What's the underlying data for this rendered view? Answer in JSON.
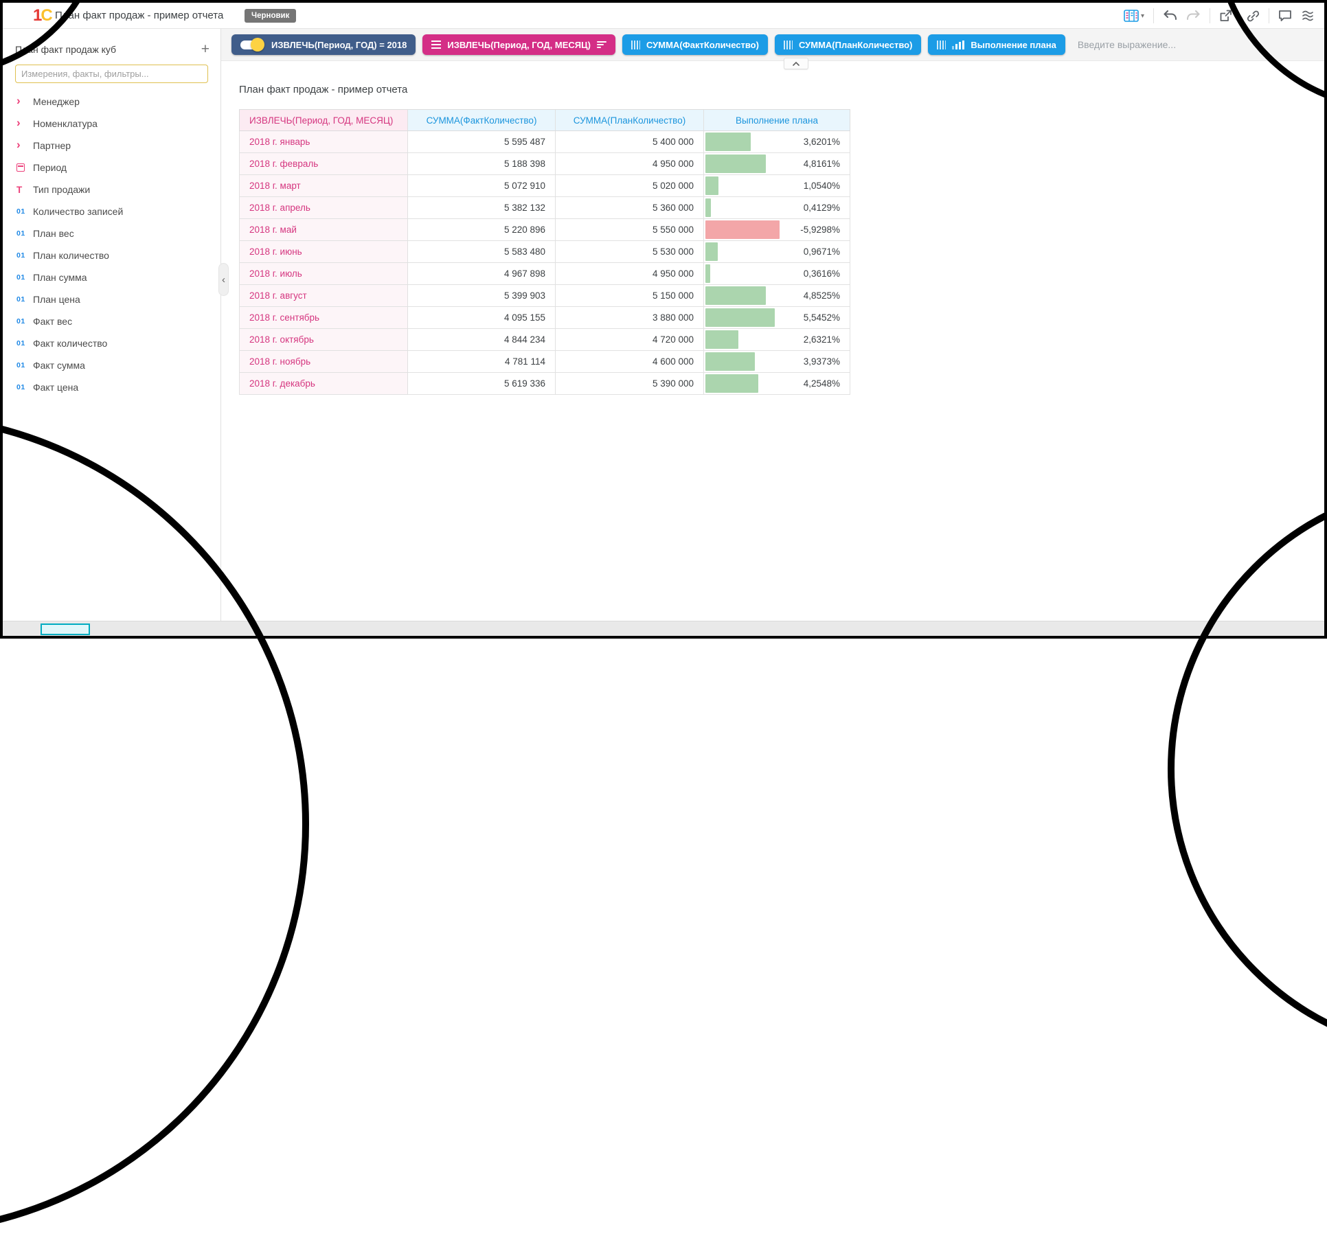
{
  "topbar": {
    "logo_text": "1С",
    "title": "План факт продаж - пример отчета",
    "badge": "Черновик",
    "icons": [
      "view-table",
      "caret-down",
      "undo",
      "redo",
      "export",
      "caret-down",
      "link",
      "comment",
      "waves"
    ]
  },
  "toolbar": {
    "chips": [
      {
        "label": "ИЗВЛЕЧЬ(Период, ГОД) = 2018",
        "type": "filter-toggle-on",
        "color": "#405d8a"
      },
      {
        "label": "ИЗВЛЕЧЬ(Период, ГОД, МЕСЯЦ)",
        "type": "dimension",
        "color": "#d42e86"
      },
      {
        "label": "СУММА(ФактКоличество)",
        "type": "measure",
        "color": "#1c9ce6"
      },
      {
        "label": "СУММА(ПланКоличество)",
        "type": "measure",
        "color": "#1c9ce6"
      },
      {
        "label": "Выполнение плана",
        "type": "measure-chart",
        "color": "#1c9ce6"
      }
    ],
    "expression_placeholder": "Введите выражение..."
  },
  "sidebar": {
    "cube_title": "План факт продаж куб",
    "add_button": "+",
    "search_placeholder": "Измерения, факты, фильтры...",
    "items": [
      {
        "icon": "chevron",
        "label": "Менеджер"
      },
      {
        "icon": "chevron",
        "label": "Номенклатура"
      },
      {
        "icon": "chevron",
        "label": "Партнер"
      },
      {
        "icon": "calendar",
        "label": "Период"
      },
      {
        "icon": "text",
        "label": "Тип продажи"
      },
      {
        "icon": "number",
        "label": "Количество записей"
      },
      {
        "icon": "number",
        "label": "План вес"
      },
      {
        "icon": "number",
        "label": "План количество"
      },
      {
        "icon": "number",
        "label": "План сумма"
      },
      {
        "icon": "number",
        "label": "План цена"
      },
      {
        "icon": "number",
        "label": "Факт вес"
      },
      {
        "icon": "number",
        "label": "Факт количество"
      },
      {
        "icon": "number",
        "label": "Факт сумма"
      },
      {
        "icon": "number",
        "label": "Факт цена"
      }
    ]
  },
  "main": {
    "report_title": "План факт продаж - пример отчета",
    "table": {
      "columns": [
        "ИЗВЛЕЧЬ(Период, ГОД, МЕСЯЦ)",
        "СУММА(ФактКоличество)",
        "СУММА(ПланКоличество)",
        "Выполнение плана"
      ],
      "rows": [
        {
          "month": "2018 г. январь",
          "fact": "5 595 487",
          "plan": "5 400 000",
          "pct_label": "3,6201%",
          "pct": 3.6201
        },
        {
          "month": "2018 г. февраль",
          "fact": "5 188 398",
          "plan": "4 950 000",
          "pct_label": "4,8161%",
          "pct": 4.8161
        },
        {
          "month": "2018 г. март",
          "fact": "5 072 910",
          "plan": "5 020 000",
          "pct_label": "1,0540%",
          "pct": 1.054
        },
        {
          "month": "2018 г. апрель",
          "fact": "5 382 132",
          "plan": "5 360 000",
          "pct_label": "0,4129%",
          "pct": 0.4129
        },
        {
          "month": "2018 г. май",
          "fact": "5 220 896",
          "plan": "5 550 000",
          "pct_label": "-5,9298%",
          "pct": -5.9298
        },
        {
          "month": "2018 г. июнь",
          "fact": "5 583 480",
          "plan": "5 530 000",
          "pct_label": "0,9671%",
          "pct": 0.9671
        },
        {
          "month": "2018 г. июль",
          "fact": "4 967 898",
          "plan": "4 950 000",
          "pct_label": "0,3616%",
          "pct": 0.3616
        },
        {
          "month": "2018 г. август",
          "fact": "5 399 903",
          "plan": "5 150 000",
          "pct_label": "4,8525%",
          "pct": 4.8525
        },
        {
          "month": "2018 г. сентябрь",
          "fact": "4 095 155",
          "plan": "3 880 000",
          "pct_label": "5,5452%",
          "pct": 5.5452
        },
        {
          "month": "2018 г. октябрь",
          "fact": "4 844 234",
          "plan": "4 720 000",
          "pct_label": "2,6321%",
          "pct": 2.6321
        },
        {
          "month": "2018 г. ноябрь",
          "fact": "4 781 114",
          "plan": "4 600 000",
          "pct_label": "3,9373%",
          "pct": 3.9373
        },
        {
          "month": "2018 г. декабрь",
          "fact": "5 619 336",
          "plan": "5 390 000",
          "pct_label": "4,2548%",
          "pct": 4.2548
        }
      ]
    }
  },
  "colors": {
    "accent_blue": "#1c9ce6",
    "accent_magenta": "#d42e86",
    "accent_navy": "#405d8a",
    "bar_positive": "#abd5ae",
    "bar_negative": "#f3a6a8",
    "toggle_knob": "#fdd243",
    "pink_text": "#d5357f",
    "badge_gray": "#757575"
  }
}
